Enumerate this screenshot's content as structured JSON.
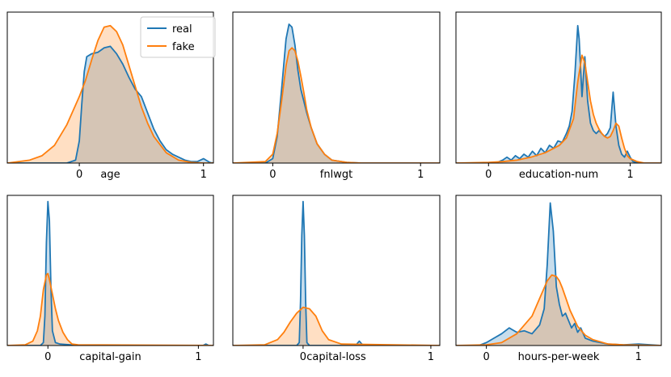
{
  "figure": {
    "series_colors": {
      "real": "#1f77b4",
      "fake": "#ff7f0e"
    },
    "legend": {
      "placement": "top-right of first panel",
      "entries": [
        "real",
        "fake"
      ]
    }
  },
  "chart_data": [
    {
      "type": "area",
      "title": "",
      "xlabel": "age",
      "xticks": [
        {
          "value": 0,
          "label": "0"
        },
        {
          "value": 1,
          "label": "1"
        }
      ],
      "xlim": [
        -0.58,
        1.08
      ],
      "ylim": [
        0,
        1.0
      ],
      "grid": false,
      "series": [
        {
          "name": "real",
          "x": [
            -0.58,
            -0.1,
            -0.03,
            0.0,
            0.02,
            0.04,
            0.06,
            0.1,
            0.15,
            0.2,
            0.25,
            0.3,
            0.35,
            0.4,
            0.45,
            0.5,
            0.55,
            0.6,
            0.65,
            0.7,
            0.75,
            0.8,
            0.85,
            0.9,
            0.95,
            1.0,
            1.05,
            1.08
          ],
          "values": [
            0,
            0,
            0.02,
            0.15,
            0.4,
            0.62,
            0.72,
            0.74,
            0.75,
            0.78,
            0.79,
            0.74,
            0.67,
            0.58,
            0.5,
            0.45,
            0.34,
            0.23,
            0.15,
            0.09,
            0.06,
            0.04,
            0.02,
            0.01,
            0.01,
            0.03,
            0.005,
            0
          ]
        },
        {
          "name": "fake",
          "x": [
            -0.58,
            -0.4,
            -0.3,
            -0.2,
            -0.1,
            0.0,
            0.05,
            0.1,
            0.15,
            0.2,
            0.25,
            0.3,
            0.35,
            0.4,
            0.45,
            0.5,
            0.55,
            0.6,
            0.7,
            0.8,
            0.9,
            1.0,
            1.08
          ],
          "values": [
            0,
            0.02,
            0.05,
            0.12,
            0.26,
            0.45,
            0.56,
            0.7,
            0.83,
            0.92,
            0.93,
            0.89,
            0.8,
            0.66,
            0.52,
            0.38,
            0.27,
            0.18,
            0.07,
            0.02,
            0.005,
            0,
            0
          ]
        }
      ]
    },
    {
      "type": "area",
      "title": "",
      "xlabel": "fnlwgt",
      "xticks": [
        {
          "value": 0,
          "label": "0"
        },
        {
          "value": 1,
          "label": "1"
        }
      ],
      "xlim": [
        -0.27,
        1.13
      ],
      "ylim": [
        0,
        1.0
      ],
      "grid": false,
      "series": [
        {
          "name": "real",
          "x": [
            -0.27,
            -0.05,
            0.0,
            0.03,
            0.06,
            0.09,
            0.11,
            0.13,
            0.15,
            0.17,
            0.19,
            0.21,
            0.23,
            0.26,
            0.3,
            0.35,
            0.4,
            0.5,
            0.6,
            1.13
          ],
          "values": [
            0,
            0,
            0.03,
            0.18,
            0.5,
            0.84,
            0.94,
            0.92,
            0.8,
            0.63,
            0.5,
            0.42,
            0.34,
            0.24,
            0.13,
            0.06,
            0.02,
            0.005,
            0,
            0
          ]
        },
        {
          "name": "fake",
          "x": [
            -0.27,
            -0.05,
            0.0,
            0.03,
            0.06,
            0.09,
            0.11,
            0.13,
            0.15,
            0.17,
            0.19,
            0.21,
            0.23,
            0.26,
            0.3,
            0.35,
            0.4,
            0.5,
            0.6,
            1.13
          ],
          "values": [
            0,
            0.01,
            0.06,
            0.2,
            0.42,
            0.66,
            0.76,
            0.78,
            0.76,
            0.69,
            0.59,
            0.48,
            0.36,
            0.24,
            0.13,
            0.06,
            0.02,
            0.005,
            0,
            0
          ]
        }
      ]
    },
    {
      "type": "area",
      "title": "",
      "xlabel": "education-num",
      "xticks": [
        {
          "value": 0,
          "label": "0"
        },
        {
          "value": 1,
          "label": "1"
        }
      ],
      "xlim": [
        -0.23,
        1.22
      ],
      "ylim": [
        0,
        1.0
      ],
      "grid": false,
      "series": [
        {
          "name": "real",
          "x": [
            -0.23,
            0.05,
            0.1,
            0.13,
            0.16,
            0.19,
            0.22,
            0.25,
            0.28,
            0.31,
            0.34,
            0.37,
            0.4,
            0.43,
            0.46,
            0.49,
            0.52,
            0.55,
            0.57,
            0.59,
            0.61,
            0.63,
            0.64,
            0.66,
            0.68,
            0.7,
            0.72,
            0.74,
            0.76,
            0.78,
            0.8,
            0.82,
            0.84,
            0.86,
            0.88,
            0.9,
            0.92,
            0.94,
            0.96,
            0.98,
            1.0,
            1.02,
            1.04,
            1.1,
            1.22
          ],
          "values": [
            0,
            0,
            0.02,
            0.04,
            0.02,
            0.05,
            0.03,
            0.06,
            0.04,
            0.08,
            0.05,
            0.1,
            0.07,
            0.12,
            0.1,
            0.15,
            0.14,
            0.2,
            0.25,
            0.35,
            0.6,
            0.93,
            0.84,
            0.45,
            0.72,
            0.42,
            0.27,
            0.22,
            0.2,
            0.22,
            0.2,
            0.18,
            0.2,
            0.24,
            0.48,
            0.25,
            0.12,
            0.06,
            0.04,
            0.08,
            0.04,
            0.01,
            0.005,
            0,
            0
          ]
        },
        {
          "name": "fake",
          "x": [
            -0.23,
            0.0,
            0.1,
            0.2,
            0.3,
            0.4,
            0.5,
            0.55,
            0.6,
            0.63,
            0.66,
            0.68,
            0.7,
            0.72,
            0.74,
            0.76,
            0.78,
            0.8,
            0.82,
            0.84,
            0.86,
            0.88,
            0.9,
            0.92,
            0.94,
            0.96,
            0.98,
            1.0,
            1.05,
            1.1,
            1.22
          ],
          "values": [
            0,
            0.005,
            0.01,
            0.02,
            0.04,
            0.07,
            0.12,
            0.17,
            0.3,
            0.55,
            0.73,
            0.68,
            0.55,
            0.42,
            0.33,
            0.27,
            0.23,
            0.2,
            0.18,
            0.17,
            0.18,
            0.22,
            0.27,
            0.25,
            0.17,
            0.1,
            0.05,
            0.03,
            0.01,
            0,
            0
          ]
        }
      ]
    },
    {
      "type": "area",
      "title": "",
      "xlabel": "capital-gain",
      "xticks": [
        {
          "value": 0,
          "label": "0"
        },
        {
          "value": 1,
          "label": "1"
        }
      ],
      "xlim": [
        -0.27,
        1.1
      ],
      "ylim": [
        0,
        1.0
      ],
      "grid": false,
      "series": [
        {
          "name": "real",
          "x": [
            -0.27,
            -0.05,
            -0.03,
            -0.02,
            -0.01,
            0.0,
            0.01,
            0.02,
            0.03,
            0.05,
            0.08,
            0.15,
            0.2,
            1.03,
            1.05,
            1.07,
            1.1
          ],
          "values": [
            0,
            0,
            0.02,
            0.2,
            0.7,
            0.98,
            0.85,
            0.4,
            0.1,
            0.02,
            0.01,
            0.005,
            0,
            0,
            0.01,
            0,
            0
          ]
        },
        {
          "name": "fake",
          "x": [
            -0.27,
            -0.15,
            -0.1,
            -0.07,
            -0.05,
            -0.03,
            -0.01,
            0.0,
            0.01,
            0.03,
            0.05,
            0.07,
            0.1,
            0.13,
            0.16,
            0.2,
            1.1
          ],
          "values": [
            0,
            0.005,
            0.03,
            0.1,
            0.2,
            0.38,
            0.48,
            0.49,
            0.45,
            0.35,
            0.25,
            0.17,
            0.09,
            0.04,
            0.01,
            0.005,
            0
          ]
        }
      ]
    },
    {
      "type": "area",
      "title": "",
      "xlabel": "capital-loss",
      "xticks": [
        {
          "value": 0,
          "label": "0"
        },
        {
          "value": 1,
          "label": "1"
        }
      ],
      "xlim": [
        -0.55,
        1.07
      ],
      "ylim": [
        0,
        1.0
      ],
      "grid": false,
      "series": [
        {
          "name": "real",
          "x": [
            -0.55,
            -0.05,
            -0.03,
            -0.02,
            -0.01,
            0.0,
            0.01,
            0.02,
            0.03,
            0.05,
            0.4,
            0.42,
            0.44,
            0.46,
            0.48,
            1.07
          ],
          "values": [
            0,
            0,
            0.02,
            0.3,
            0.75,
            0.98,
            0.75,
            0.3,
            0.02,
            0,
            0,
            0.01,
            0.03,
            0.01,
            0,
            0
          ]
        },
        {
          "name": "fake",
          "x": [
            -0.55,
            -0.3,
            -0.2,
            -0.15,
            -0.1,
            -0.05,
            0.0,
            0.05,
            0.1,
            0.15,
            0.2,
            0.3,
            1.07
          ],
          "values": [
            0,
            0.005,
            0.04,
            0.09,
            0.16,
            0.22,
            0.26,
            0.25,
            0.2,
            0.1,
            0.04,
            0.01,
            0
          ]
        }
      ]
    },
    {
      "type": "area",
      "title": "",
      "xlabel": "hours-per-week",
      "xticks": [
        {
          "value": 0,
          "label": "0"
        },
        {
          "value": 1,
          "label": "1"
        }
      ],
      "xlim": [
        -0.2,
        1.15
      ],
      "ylim": [
        0,
        1.0
      ],
      "grid": false,
      "series": [
        {
          "name": "real",
          "x": [
            -0.2,
            -0.05,
            0.0,
            0.05,
            0.1,
            0.15,
            0.2,
            0.25,
            0.3,
            0.35,
            0.38,
            0.4,
            0.42,
            0.44,
            0.46,
            0.48,
            0.5,
            0.52,
            0.54,
            0.56,
            0.58,
            0.6,
            0.62,
            0.65,
            0.7,
            0.75,
            0.8,
            0.9,
            1.0,
            1.15
          ],
          "values": [
            0,
            0,
            0.02,
            0.05,
            0.08,
            0.12,
            0.09,
            0.1,
            0.08,
            0.14,
            0.25,
            0.55,
            0.97,
            0.78,
            0.4,
            0.28,
            0.2,
            0.22,
            0.17,
            0.12,
            0.15,
            0.09,
            0.12,
            0.05,
            0.03,
            0.02,
            0.01,
            0.005,
            0.01,
            0
          ]
        },
        {
          "name": "fake",
          "x": [
            -0.2,
            0.0,
            0.1,
            0.2,
            0.3,
            0.35,
            0.4,
            0.43,
            0.46,
            0.48,
            0.5,
            0.52,
            0.55,
            0.6,
            0.65,
            0.7,
            0.8,
            0.9,
            1.15
          ],
          "values": [
            0,
            0.005,
            0.02,
            0.08,
            0.2,
            0.32,
            0.44,
            0.48,
            0.47,
            0.44,
            0.39,
            0.33,
            0.24,
            0.13,
            0.07,
            0.04,
            0.01,
            0.005,
            0
          ]
        }
      ]
    }
  ]
}
